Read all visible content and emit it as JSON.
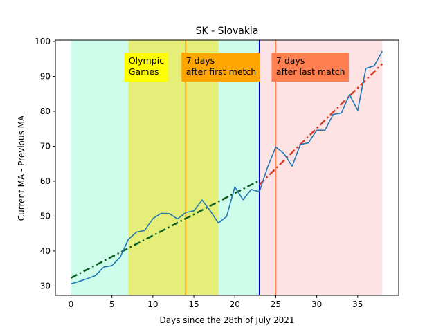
{
  "chart_data": {
    "type": "line",
    "title": "SK - Slovakia",
    "xlabel": "Days since the 28th of July 2021",
    "ylabel": "Current MA - Previous MA",
    "xlim": [
      -1.9,
      40
    ],
    "ylim": [
      27.3,
      100.4
    ],
    "x_ticks": [
      0,
      5,
      10,
      15,
      20,
      25,
      30,
      35
    ],
    "y_ticks": [
      30,
      40,
      50,
      60,
      70,
      80,
      90,
      100
    ],
    "grid": false,
    "legend": "none",
    "series": [
      {
        "color": "#1f77b4",
        "x": [
          0,
          1,
          2,
          3,
          4,
          5,
          6,
          7,
          8,
          9,
          10,
          11,
          12,
          13,
          14,
          15,
          16,
          17,
          18,
          19,
          20,
          21,
          22,
          23,
          24,
          25,
          26,
          27,
          28,
          29,
          30,
          31,
          32,
          33,
          34,
          35,
          36,
          37,
          38
        ],
        "y": [
          30.6,
          31.3,
          32.1,
          33.0,
          35.4,
          35.8,
          38.2,
          43.3,
          45.4,
          45.9,
          49.3,
          50.8,
          50.7,
          49.2,
          51.0,
          51.5,
          54.6,
          51.5,
          48.0,
          49.9,
          58.4,
          54.7,
          57.6,
          57.0,
          64.0,
          69.8,
          67.9,
          64.3,
          70.5,
          71.0,
          74.6,
          74.6,
          79.1,
          79.5,
          84.8,
          80.3,
          92.3,
          93.0,
          97.2
        ]
      }
    ],
    "trend_lines": [
      {
        "x": [
          0,
          23
        ],
        "y": [
          32.3,
          60.2
        ],
        "color": "#0b5d1e",
        "style": "dashdot"
      },
      {
        "x": [
          23,
          38
        ],
        "y": [
          59.0,
          93.6
        ],
        "color": "#d93a26",
        "style": "dashdot"
      }
    ],
    "shaded_regions": [
      {
        "x": [
          0,
          7
        ],
        "color": "#cefcea"
      },
      {
        "x": [
          7,
          18
        ],
        "color": "#e6ee7a"
      },
      {
        "x": [
          18,
          23
        ],
        "color": "#cefcea"
      },
      {
        "x": [
          23,
          38
        ],
        "color": "#fde3e3"
      }
    ],
    "vertical_lines": [
      {
        "x": 14,
        "color": "#ff9900"
      },
      {
        "x": 23,
        "color": "#0000cc"
      },
      {
        "x": 25,
        "color": "#ff7f50"
      }
    ],
    "annotations": [
      {
        "lines": [
          "Olympic",
          "Games"
        ],
        "x": 7,
        "color": "#ffff00"
      },
      {
        "lines": [
          "7 days",
          "after first metch"
        ],
        "x": 14,
        "color": "#ffa500"
      },
      {
        "lines": [
          "7 days",
          "after last match"
        ],
        "x": 25,
        "color": "#ff7f50"
      }
    ]
  }
}
